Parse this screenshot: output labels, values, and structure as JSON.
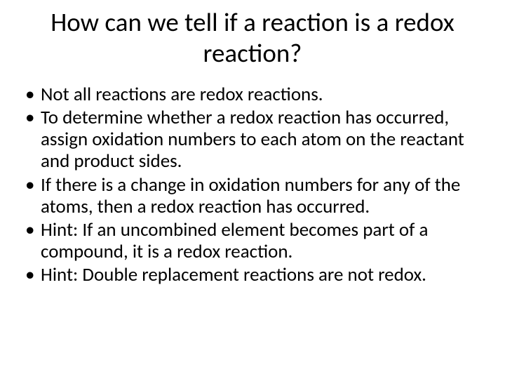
{
  "slide": {
    "title": "How can we tell if a reaction is a redox reaction?",
    "bullets": [
      "Not all reactions are redox reactions.",
      "To determine whether a redox reaction has occurred, assign oxidation numbers to each atom on the reactant and product sides.",
      "If there is a change in oxidation numbers for any of the atoms, then a redox reaction has occurred.",
      "Hint: If an uncombined element becomes part of a compound, it is a redox reaction.",
      "Hint: Double replacement reactions are not redox."
    ],
    "colors": {
      "background": "#ffffff",
      "text": "#000000"
    },
    "typography": {
      "title_fontsize": 37,
      "body_fontsize": 27,
      "font_family": "Calibri"
    }
  }
}
